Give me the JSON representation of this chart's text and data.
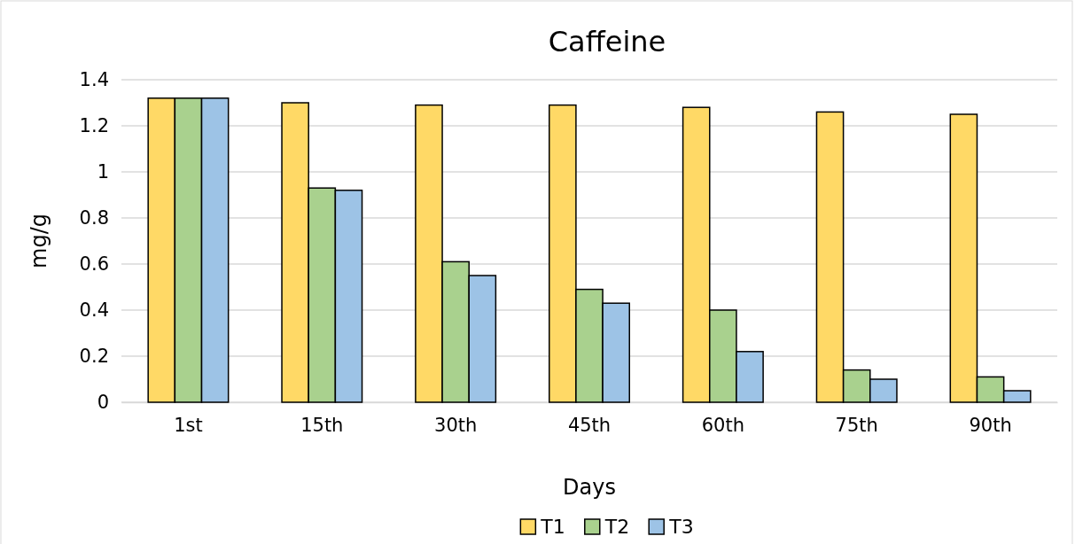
{
  "chart_data": {
    "type": "bar",
    "title": "Caffeine",
    "xlabel": "Days",
    "ylabel": "mg/g",
    "categories": [
      "1st",
      "15th",
      "30th",
      "45th",
      "60th",
      "75th",
      "90th"
    ],
    "series": [
      {
        "name": "T1",
        "color": "#ffd966",
        "values": [
          1.32,
          1.3,
          1.29,
          1.29,
          1.28,
          1.26,
          1.25
        ]
      },
      {
        "name": "T2",
        "color": "#a9d18e",
        "values": [
          1.32,
          0.93,
          0.61,
          0.49,
          0.4,
          0.14,
          0.11
        ]
      },
      {
        "name": "T3",
        "color": "#9dc3e6",
        "values": [
          1.32,
          0.92,
          0.55,
          0.43,
          0.22,
          0.1,
          0.05
        ]
      }
    ],
    "ylim": [
      0,
      1.4
    ],
    "yticks": [
      0,
      0.2,
      0.4,
      0.6,
      0.8,
      1,
      1.2,
      1.4
    ],
    "grid": "y",
    "legend": "bottom"
  }
}
